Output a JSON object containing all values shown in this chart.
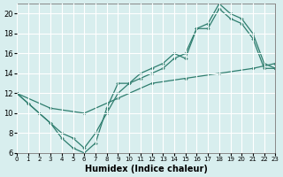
{
  "xlabel": "Humidex (Indice chaleur)",
  "background_color": "#d8eeee",
  "line_color": "#2e7d6e",
  "grid_color": "#ffffff",
  "xlim": [
    0,
    23
  ],
  "ylim": [
    6,
    21
  ],
  "xticks": [
    0,
    1,
    2,
    3,
    4,
    5,
    6,
    7,
    8,
    9,
    10,
    11,
    12,
    13,
    14,
    15,
    16,
    17,
    18,
    19,
    20,
    21,
    22,
    23
  ],
  "yticks": [
    6,
    8,
    10,
    12,
    14,
    16,
    18,
    20
  ],
  "series1_x": [
    0,
    1,
    2,
    3,
    4,
    5,
    6,
    7,
    8,
    9,
    10,
    11,
    12,
    13,
    14,
    15,
    16,
    17,
    18,
    19,
    20,
    21,
    22,
    23
  ],
  "series1_y": [
    12,
    11,
    10,
    9,
    7.5,
    6.5,
    6,
    7,
    10.5,
    13,
    13,
    14,
    14.5,
    15,
    16,
    15.5,
    18.5,
    19,
    21,
    20,
    19.5,
    18,
    15,
    14.5
  ],
  "series2_x": [
    0,
    1,
    2,
    3,
    4,
    5,
    6,
    7,
    8,
    9,
    10,
    11,
    12,
    13,
    14,
    15,
    16,
    17,
    18,
    19,
    20,
    21,
    22,
    23
  ],
  "series2_y": [
    12,
    11,
    10,
    9,
    8,
    7.5,
    6.5,
    8,
    10,
    12,
    13,
    13.5,
    14,
    14.5,
    15.5,
    16,
    18.5,
    18.5,
    20.5,
    19.5,
    19,
    17.5,
    14.5,
    14.5
  ],
  "series3_x": [
    0,
    3,
    6,
    9,
    12,
    15,
    18,
    21,
    23
  ],
  "series3_y": [
    12,
    10.5,
    10,
    11.5,
    13,
    13.5,
    14,
    14.5,
    15
  ]
}
